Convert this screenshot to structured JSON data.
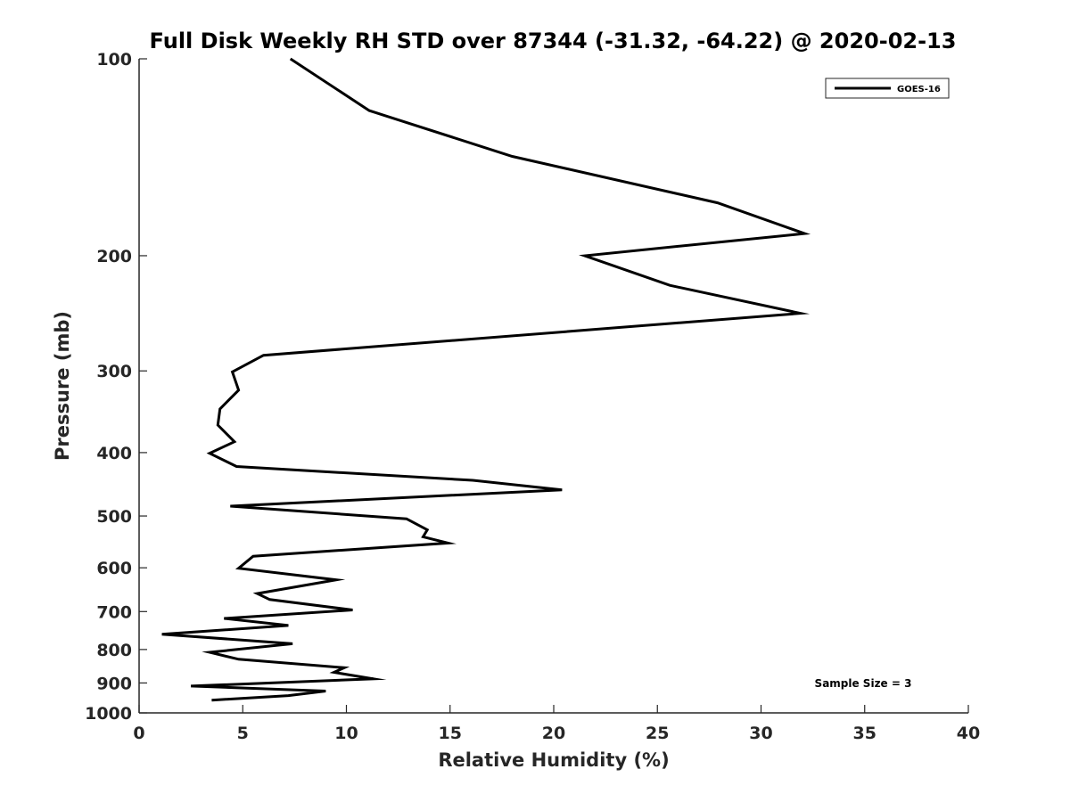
{
  "chart_data": {
    "type": "line",
    "title": "Full Disk Weekly RH STD over 87344 (-31.32, -64.22) @ 2020-02-13",
    "xlabel": "Relative Humidity (%)",
    "ylabel": "Pressure (mb)",
    "xlim": [
      0,
      40
    ],
    "ylim": [
      100,
      1000
    ],
    "yscale": "log",
    "y_inverted": true,
    "grid": false,
    "x_ticks": [
      0,
      5,
      10,
      15,
      20,
      25,
      30,
      35,
      40
    ],
    "x_tick_labels": [
      "0",
      "5",
      "10",
      "15",
      "20",
      "25",
      "30",
      "35",
      "40"
    ],
    "y_ticks": [
      100,
      200,
      300,
      400,
      500,
      600,
      700,
      800,
      900,
      1000
    ],
    "y_tick_labels": [
      "100",
      "200",
      "300",
      "400",
      "500",
      "600",
      "700",
      "800",
      "900",
      "1000"
    ],
    "legend": {
      "position": "top-right",
      "entries": [
        "GOES-16"
      ]
    },
    "annotation": "Sample Size = 3",
    "series": [
      {
        "name": "GOES-16",
        "color": "#000000",
        "x": [
          7.3,
          11.1,
          18.0,
          27.9,
          32.1,
          21.5,
          25.6,
          31.9,
          6.0,
          4.5,
          4.8,
          3.9,
          3.8,
          4.6,
          3.4,
          4.7,
          16.1,
          20.4,
          4.4,
          12.9,
          13.9,
          13.7,
          14.9,
          5.5,
          4.8,
          9.5,
          5.7,
          6.3,
          10.3,
          4.1,
          7.2,
          1.1,
          7.4,
          3.4,
          4.8,
          9.9,
          9.4,
          11.3,
          2.5,
          9.0,
          7.2,
          3.5
        ],
        "y": [
          100,
          120,
          141,
          166,
          185,
          200,
          222,
          245,
          284,
          301,
          321,
          343,
          363,
          385,
          401,
          420,
          441,
          456,
          483,
          505,
          525,
          538,
          550,
          576,
          601,
          626,
          657,
          671,
          696,
          717,
          735,
          758,
          784,
          808,
          828,
          853,
          867,
          887,
          910,
          926,
          941,
          956
        ]
      }
    ]
  }
}
